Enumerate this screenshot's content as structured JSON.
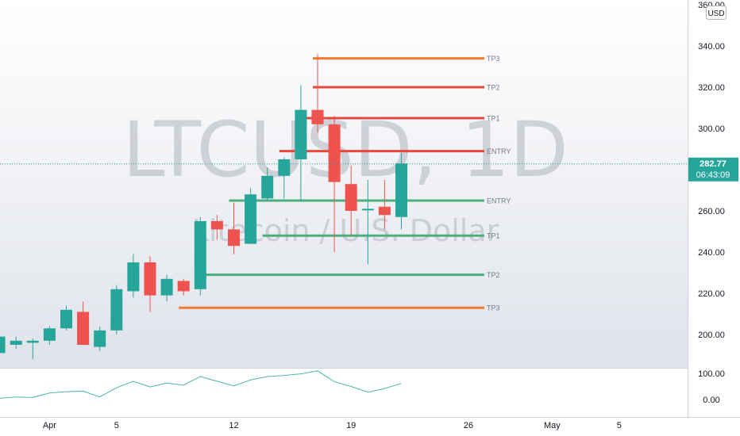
{
  "chart_data": {
    "type": "candlestick",
    "title": "LTCUSD, 1D",
    "watermark": {
      "symbol": "LTCUSD, 1D",
      "description": "Litecoin / U.S. Dollar"
    },
    "currency": "USD",
    "ylim": [
      180,
      360
    ],
    "y_ticks": [
      200,
      220,
      240,
      260,
      280,
      300,
      320,
      340,
      360
    ],
    "y_tick_labels": [
      "200.00",
      "220.00",
      "240.00",
      "260.00",
      "280.00",
      "300.00",
      "320.00",
      "340.00",
      "360.00"
    ],
    "x_tick_labels": [
      "Apr",
      "5",
      "12",
      "19",
      "26",
      "May",
      "5"
    ],
    "x_tick_days": [
      1,
      5,
      12,
      19,
      26,
      31,
      35
    ],
    "last_price": "282.77",
    "countdown": "06:43:09",
    "candles": [
      {
        "day": -2,
        "open": 191,
        "high": 200,
        "low": 190,
        "close": 199
      },
      {
        "day": -1,
        "open": 195,
        "high": 199,
        "low": 193,
        "close": 197
      },
      {
        "day": 0,
        "open": 196,
        "high": 198,
        "low": 188,
        "close": 197
      },
      {
        "day": 1,
        "open": 197,
        "high": 204,
        "low": 195,
        "close": 203
      },
      {
        "day": 2,
        "open": 203,
        "high": 214,
        "low": 202,
        "close": 212
      },
      {
        "day": 3,
        "open": 211,
        "high": 216,
        "low": 195,
        "close": 195
      },
      {
        "day": 4,
        "open": 194,
        "high": 204,
        "low": 192,
        "close": 202
      },
      {
        "day": 5,
        "open": 202,
        "high": 224,
        "low": 200,
        "close": 222
      },
      {
        "day": 6,
        "open": 221,
        "high": 239,
        "low": 218,
        "close": 235
      },
      {
        "day": 7,
        "open": 235,
        "high": 238,
        "low": 211,
        "close": 219
      },
      {
        "day": 8,
        "open": 219,
        "high": 229,
        "low": 216,
        "close": 227
      },
      {
        "day": 9,
        "open": 226,
        "high": 227,
        "low": 219,
        "close": 221
      },
      {
        "day": 10,
        "open": 222,
        "high": 257,
        "low": 219,
        "close": 255
      },
      {
        "day": 11,
        "open": 255,
        "high": 258,
        "low": 246,
        "close": 251
      },
      {
        "day": 12,
        "open": 251,
        "high": 264,
        "low": 239,
        "close": 243
      },
      {
        "day": 13,
        "open": 244,
        "high": 271,
        "low": 244,
        "close": 268
      },
      {
        "day": 14,
        "open": 266,
        "high": 281,
        "low": 265,
        "close": 277
      },
      {
        "day": 15,
        "open": 277,
        "high": 286,
        "low": 266,
        "close": 285
      },
      {
        "day": 16,
        "open": 285,
        "high": 321,
        "low": 265,
        "close": 309
      },
      {
        "day": 17,
        "open": 309,
        "high": 336,
        "low": 298,
        "close": 302
      },
      {
        "day": 18,
        "open": 302,
        "high": 306,
        "low": 240,
        "close": 274
      },
      {
        "day": 19,
        "open": 273,
        "high": 282,
        "low": 248,
        "close": 260
      },
      {
        "day": 20,
        "open": 261,
        "high": 275,
        "low": 234,
        "close": 261
      },
      {
        "day": 21,
        "open": 262,
        "high": 275,
        "low": 251,
        "close": 258
      },
      {
        "day": 22,
        "open": 257,
        "high": 288,
        "low": 251,
        "close": 283
      }
    ],
    "levels": [
      {
        "label": "TP3",
        "price": 334,
        "color": "#f57c32",
        "start_day": 17
      },
      {
        "label": "TP2",
        "price": 320,
        "color": "#e8483b",
        "start_day": 17
      },
      {
        "label": "TP1",
        "price": 305,
        "color": "#e8483b",
        "start_day": 16
      },
      {
        "label": "ENTRY",
        "price": 289,
        "color": "#e8483b",
        "start_day": 15
      },
      {
        "label": "ENTRY",
        "price": 265,
        "color": "#4caf7d",
        "start_day": 12
      },
      {
        "label": "TP1",
        "price": 248,
        "color": "#4caf7d",
        "start_day": 14
      },
      {
        "label": "TP2",
        "price": 229,
        "color": "#4caf7d",
        "start_day": 10
      },
      {
        "label": "TP3",
        "price": 213,
        "color": "#f57c32",
        "start_day": 9
      }
    ],
    "oscillator": {
      "y_ticks": [
        100,
        0
      ],
      "y_tick_labels": [
        "100.00",
        "0.00"
      ],
      "ylim": [
        -30,
        110
      ],
      "color": "#4fb6ac",
      "values": [
        5,
        10,
        8,
        25,
        30,
        32,
        10,
        45,
        70,
        48,
        63,
        55,
        88,
        70,
        52,
        75,
        88,
        92,
        98,
        110,
        68,
        50,
        28,
        42,
        62
      ]
    },
    "colors": {
      "up": "#26a69a",
      "down": "#ef5350",
      "last_price_bg": "#26a69a"
    }
  }
}
